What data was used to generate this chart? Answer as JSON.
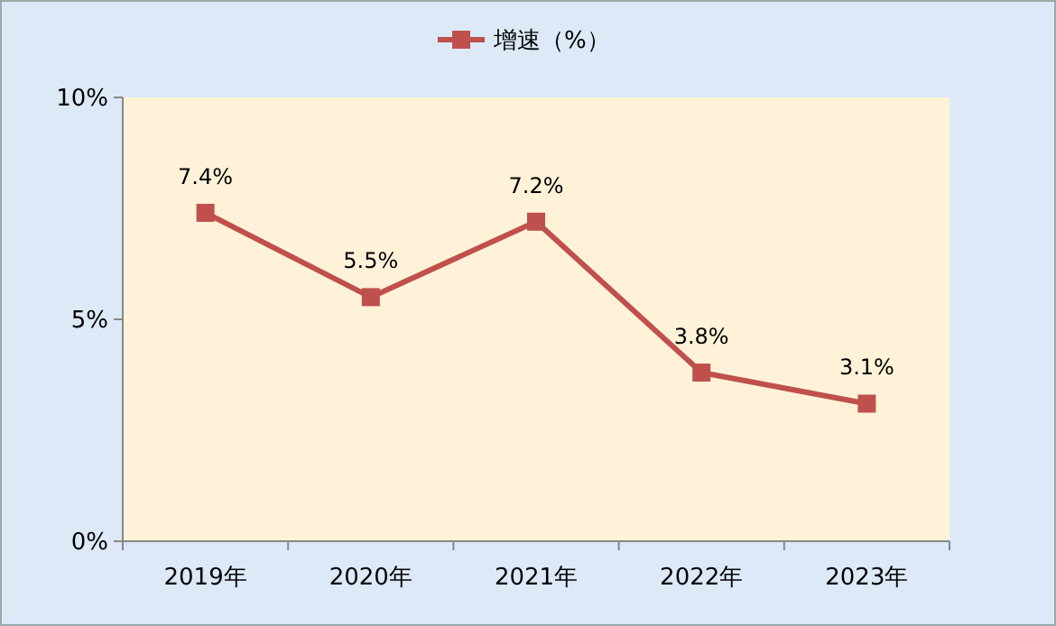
{
  "chart_data": {
    "type": "line",
    "categories": [
      "2019年",
      "2020年",
      "2021年",
      "2022年",
      "2023年"
    ],
    "series": [
      {
        "name": "增速（%）",
        "color": "#c0504d",
        "values": [
          7.4,
          5.5,
          7.2,
          3.8,
          3.1
        ],
        "value_labels": [
          "7.4%",
          "5.5%",
          "7.2%",
          "3.8%",
          "3.1%"
        ]
      }
    ],
    "ylim": [
      0,
      10
    ],
    "yticks": [
      {
        "value": 0,
        "label": "0%"
      },
      {
        "value": 5,
        "label": "5%"
      },
      {
        "value": 10,
        "label": "10%"
      }
    ],
    "legend": "top",
    "marker": "square",
    "line_style": "solid",
    "grid": false
  }
}
